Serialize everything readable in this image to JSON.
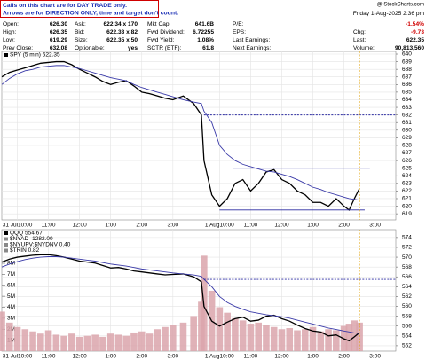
{
  "header": {
    "note": [
      "Calls on this chart are for DAY TRADE only.",
      "Arrows are for DIRECTION ONLY, time and target don't count."
    ],
    "logo": "@ StockCharts.com",
    "date": "Friday  1-Aug-2025  2:36 pm",
    "rows": [
      [
        {
          "label": "Open:",
          "value": "626.30"
        },
        {
          "label": "Ask:",
          "value": "622.34 x 170"
        },
        {
          "label": "Mkt Cap:",
          "value": "641.6B"
        },
        {
          "label": "P/E:"
        }
      ],
      [
        {
          "label": "High:",
          "value": "626.35"
        },
        {
          "label": "Bid:",
          "value": "622.33 x 82"
        },
        {
          "label": "Fwd Dividend:",
          "value": "6.72255"
        },
        {
          "label": "EPS:"
        }
      ],
      [
        {
          "label": "Low:",
          "value": "619.29"
        },
        {
          "label": "Size:",
          "value": "622.35 x 50"
        },
        {
          "label": "Fwd Yield:",
          "value": "1.08%"
        },
        {
          "label": "Last Earnings:"
        }
      ],
      [
        {
          "label": "Prev Close:",
          "value": "632.08"
        },
        {
          "label": "Optionable:",
          "value": "yes"
        },
        {
          "label": "SCTR (ETF):",
          "value": "61.8"
        },
        {
          "label": "Next Earnings:"
        }
      ]
    ],
    "right": [
      {
        "value": "-1.54%"
      },
      {
        "label": "Chg:",
        "value": "-9.73"
      },
      {
        "label": "Last:",
        "value": "622.35"
      },
      {
        "label": "Volume:",
        "value": "90,813,560"
      }
    ]
  },
  "chart_data": [
    {
      "type": "line",
      "legend": [
        "SPY (5 min) 622.35"
      ],
      "x": [
        0,
        3,
        6,
        9,
        12,
        15,
        18,
        21,
        24,
        27,
        30,
        33,
        36,
        39,
        42,
        45,
        48,
        51,
        54,
        57,
        60,
        63,
        66,
        70,
        74,
        77,
        78,
        81,
        84,
        87,
        90,
        93,
        96,
        99,
        102,
        105,
        108,
        111,
        114,
        117,
        120,
        123,
        126,
        129,
        132,
        134,
        136,
        138
      ],
      "series": [
        {
          "name": "SPY",
          "color": "#000000",
          "values": [
            637,
            637.6,
            637.9,
            638.2,
            638.5,
            638.8,
            638.9,
            639,
            639,
            638.6,
            638,
            637.5,
            637,
            636.4,
            636,
            636.3,
            636.5,
            635.8,
            635,
            634.8,
            634.5,
            634.2,
            634,
            634.5,
            633.5,
            632,
            626,
            621.5,
            620,
            621,
            623,
            623.5,
            622,
            623,
            624.5,
            624.8,
            623.5,
            623,
            622,
            621.5,
            620.5,
            620.5,
            620,
            621,
            620,
            619.5,
            621,
            622.35
          ]
        },
        {
          "name": "MA",
          "color": "#3a3aa8",
          "values": [
            636,
            636.8,
            637.4,
            637.8,
            638,
            638.3,
            638.4,
            638.5,
            638.5,
            638.3,
            638.1,
            637.8,
            637.5,
            637.2,
            636.9,
            636.7,
            636.5,
            636,
            635.6,
            635.3,
            635,
            634.7,
            634.4,
            634,
            633.7,
            633.5,
            632.5,
            631,
            628,
            626.8,
            626,
            625.5,
            625.2,
            624.9,
            624.6,
            624.5,
            624.2,
            623.9,
            623.5,
            623,
            622.5,
            622.2,
            621.8,
            621.5,
            621.2,
            621,
            620.9,
            620.8
          ]
        }
      ],
      "ylim": [
        618.2,
        640.35
      ],
      "yticks": [
        619,
        620,
        621,
        622,
        623,
        624,
        625,
        626,
        627,
        628,
        629,
        630,
        631,
        632,
        633,
        634,
        635,
        636,
        637,
        638,
        639,
        640
      ],
      "xlim": [
        0,
        152
      ],
      "xticks": [
        {
          "value": 6,
          "label": "31 Jul10:00"
        },
        {
          "value": 18,
          "label": "11:00"
        },
        {
          "value": 30,
          "label": "12:00"
        },
        {
          "value": 42,
          "label": "1:00"
        },
        {
          "value": 54,
          "label": "2:00"
        },
        {
          "value": 66,
          "label": "3:00"
        },
        {
          "value": 84,
          "label": "1 Aug10:00"
        },
        {
          "value": 96,
          "label": "11:00"
        },
        {
          "value": 108,
          "label": "12:00"
        },
        {
          "value": 120,
          "label": "1:00"
        },
        {
          "value": 132,
          "label": "2:00"
        },
        {
          "value": 144,
          "label": "3:00"
        }
      ],
      "hlines": [
        {
          "y": 632,
          "x": [
            78,
            152
          ],
          "dashed": true,
          "color": "#2a2aa0"
        },
        {
          "y": 625,
          "x": [
            89,
            142
          ],
          "dashed": false,
          "color": "#2a2aa0"
        },
        {
          "y": 619.5,
          "x": [
            84,
            140
          ],
          "dashed": false,
          "color": "#2a2aa0"
        }
      ],
      "vline": 138,
      "grid": true
    },
    {
      "type": "line",
      "legend": [
        "QQQ 554.67",
        "$NYAD -1282.00",
        "$NYUPV:$NYDNV 0.40",
        "$TRIN 0.82"
      ],
      "x": [
        0,
        3,
        6,
        9,
        12,
        15,
        18,
        21,
        24,
        27,
        30,
        33,
        36,
        39,
        42,
        45,
        48,
        51,
        54,
        57,
        60,
        63,
        66,
        70,
        74,
        77,
        78,
        81,
        84,
        87,
        90,
        93,
        96,
        99,
        102,
        105,
        108,
        111,
        114,
        117,
        120,
        123,
        126,
        129,
        132,
        134,
        136,
        138
      ],
      "series": [
        {
          "name": "Volume",
          "type": "bar",
          "color": "#dba4ab",
          "values": [
            3.6,
            2.6,
            2.2,
            2.0,
            1.8,
            1.6,
            1.9,
            1.5,
            1.4,
            1.6,
            1.3,
            1.4,
            1.5,
            1.3,
            1.6,
            1.5,
            1.4,
            1.7,
            1.8,
            1.6,
            2.0,
            2.2,
            2.4,
            2.6,
            3.2,
            4.5,
            8.7,
            5.5,
            4.0,
            3.5,
            3.0,
            2.8,
            2.5,
            2.6,
            2.4,
            2.2,
            2.0,
            2.1,
            1.9,
            2.0,
            2.2,
            1.8,
            2.0,
            1.9,
            2.3,
            2.5,
            2.8,
            2.6
          ]
        },
        {
          "name": "QQQ",
          "axis": "y2",
          "color": "#000000",
          "values": [
            569,
            569.6,
            570,
            570.2,
            570.4,
            570.5,
            570.5,
            570.3,
            570,
            569.6,
            569.2,
            569,
            568.8,
            568.3,
            567.8,
            567.9,
            567.6,
            567.2,
            567,
            566.8,
            566.6,
            566.4,
            566.5,
            566.6,
            566,
            565,
            560,
            557,
            556,
            556.8,
            557.5,
            557.8,
            557,
            557.2,
            558,
            558.2,
            557.5,
            557,
            556.2,
            555.5,
            555,
            554.8,
            554,
            554.2,
            553.4,
            553,
            553.8,
            554.67
          ]
        },
        {
          "name": "QQQ MA",
          "axis": "y2",
          "color": "#3a3aa8",
          "values": [
            568,
            568.6,
            569.1,
            569.5,
            569.8,
            570,
            570.1,
            570.1,
            570,
            569.8,
            569.6,
            569.4,
            569.2,
            568.9,
            568.6,
            568.4,
            568.2,
            567.9,
            567.6,
            567.4,
            567.2,
            567,
            566.8,
            566.6,
            566.4,
            566.1,
            565.5,
            564,
            562,
            560.8,
            560,
            559.4,
            558.9,
            558.6,
            558.3,
            558.1,
            557.9,
            557.6,
            557.2,
            556.8,
            556.4,
            556,
            555.6,
            555.3,
            555,
            554.8,
            554.6,
            554.5
          ]
        }
      ],
      "ylim": [
        0,
        11.07
      ],
      "yticks": [
        {
          "value": 1,
          "label": "1M"
        },
        {
          "value": 2,
          "label": "2M"
        },
        {
          "value": 3,
          "label": "3M"
        },
        {
          "value": 4,
          "label": "4M"
        },
        {
          "value": 5,
          "label": "5M"
        },
        {
          "value": 6,
          "label": "6M"
        },
        {
          "value": 7,
          "label": "7M"
        },
        {
          "value": 8,
          "label": "8M"
        }
      ],
      "y2lim": [
        550.9,
        575.6
      ],
      "y2ticks": [
        552,
        554,
        556,
        558,
        560,
        562,
        564,
        566,
        568,
        570,
        572,
        574
      ],
      "xlim": [
        0,
        152
      ],
      "xticks": [
        {
          "value": 6,
          "label": "31 Jul10:00"
        },
        {
          "value": 18,
          "label": "11:00"
        },
        {
          "value": 30,
          "label": "12:00"
        },
        {
          "value": 42,
          "label": "1:00"
        },
        {
          "value": 54,
          "label": "2:00"
        },
        {
          "value": 66,
          "label": "3:00"
        },
        {
          "value": 84,
          "label": "1 Aug10:00"
        },
        {
          "value": 96,
          "label": "11:00"
        },
        {
          "value": 108,
          "label": "12:00"
        },
        {
          "value": 120,
          "label": "1:00"
        },
        {
          "value": 132,
          "label": "2:00"
        },
        {
          "value": 144,
          "label": "3:00"
        }
      ],
      "hlines": [
        {
          "y": 565.5,
          "x": [
            78,
            152
          ],
          "dashed": true,
          "color": "#2a2aa0",
          "axis": "y2"
        }
      ],
      "vline": 138,
      "grid": true
    }
  ]
}
